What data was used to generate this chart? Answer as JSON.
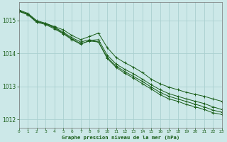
{
  "xlabel": "Graphe pression niveau de la mer (hPa)",
  "background_color": "#cce8e8",
  "grid_color": "#aad0d0",
  "line_color": "#1a5e1a",
  "xlim": [
    0,
    23
  ],
  "ylim": [
    1011.75,
    1015.55
  ],
  "yticks": [
    1012,
    1013,
    1014,
    1015
  ],
  "xticks": [
    0,
    1,
    2,
    3,
    4,
    5,
    6,
    7,
    8,
    9,
    10,
    11,
    12,
    13,
    14,
    15,
    16,
    17,
    18,
    19,
    20,
    21,
    22,
    23
  ],
  "series": [
    [
      1015.28,
      1015.18,
      1014.95,
      1014.92,
      1014.82,
      1014.72,
      1014.55,
      1014.42,
      1014.52,
      1014.62,
      1014.18,
      1013.88,
      1013.72,
      1013.58,
      1013.42,
      1013.22,
      1013.08,
      1012.98,
      1012.9,
      1012.82,
      1012.76,
      1012.7,
      1012.62,
      1012.55
    ],
    [
      1015.28,
      1015.18,
      1014.95,
      1014.88,
      1014.75,
      1014.6,
      1014.42,
      1014.28,
      1014.4,
      1014.42,
      1013.95,
      1013.68,
      1013.52,
      1013.38,
      1013.22,
      1013.05,
      1012.9,
      1012.78,
      1012.7,
      1012.62,
      1012.55,
      1012.48,
      1012.38,
      1012.3
    ],
    [
      1015.3,
      1015.2,
      1014.98,
      1014.9,
      1014.78,
      1014.62,
      1014.45,
      1014.3,
      1014.38,
      1014.35,
      1013.88,
      1013.62,
      1013.45,
      1013.3,
      1013.15,
      1012.98,
      1012.82,
      1012.7,
      1012.62,
      1012.54,
      1012.46,
      1012.38,
      1012.28,
      1012.22
    ],
    [
      1015.32,
      1015.22,
      1015.0,
      1014.92,
      1014.8,
      1014.65,
      1014.48,
      1014.35,
      1014.42,
      1014.35,
      1013.85,
      1013.58,
      1013.4,
      1013.25,
      1013.08,
      1012.92,
      1012.75,
      1012.62,
      1012.55,
      1012.45,
      1012.38,
      1012.3,
      1012.2,
      1012.15
    ]
  ]
}
